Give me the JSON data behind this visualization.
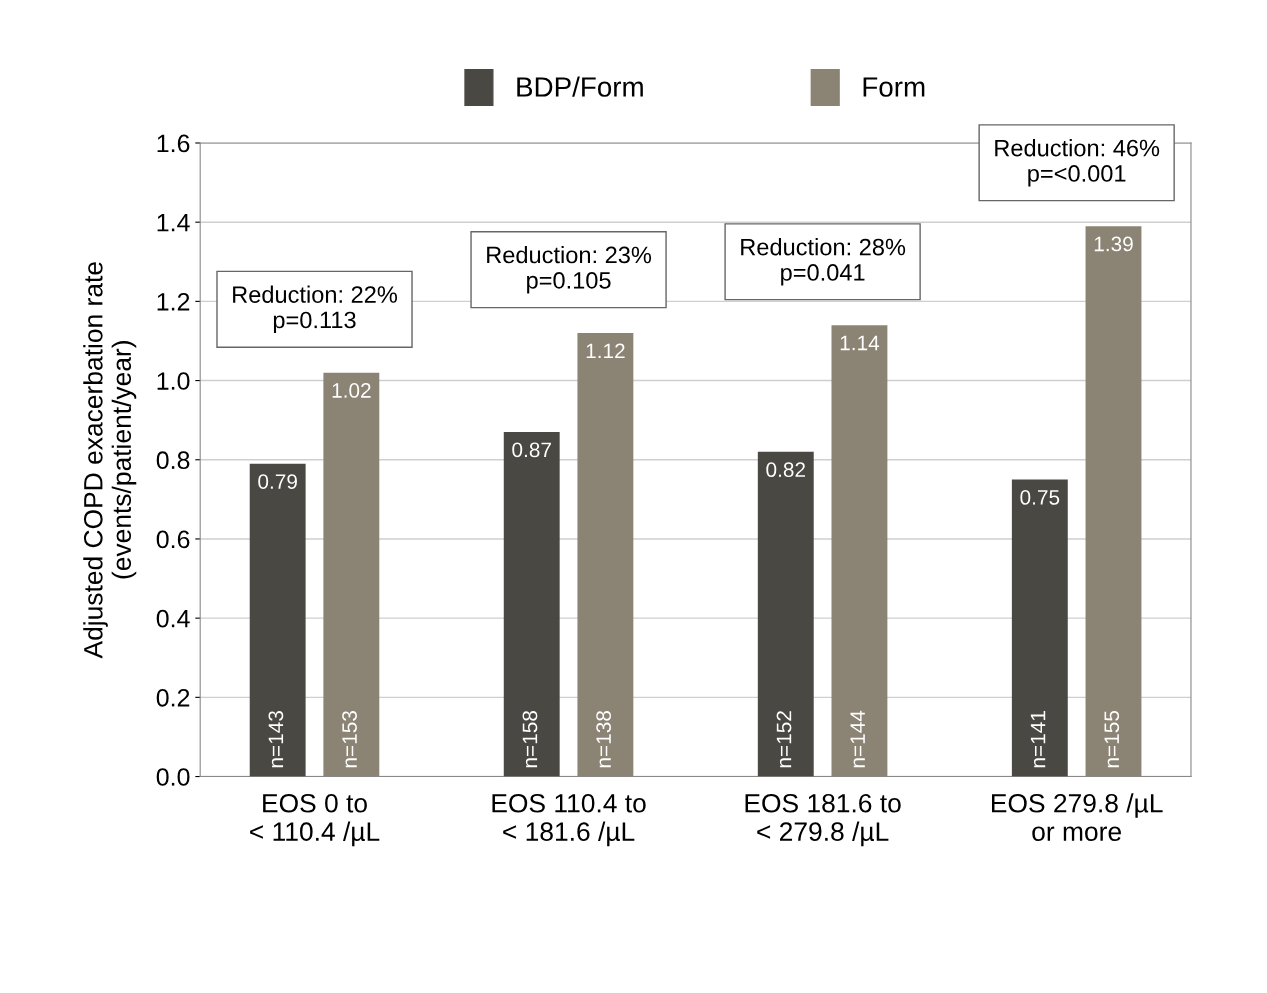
{
  "chart_data": {
    "type": "bar",
    "ylabel": "Adjusted COPD exacerbation rate\n(events/patient/year)",
    "categories": [
      "EOS 0 to\n< 110.4 /µL",
      "EOS 110.4 to\n< 181.6 /µL",
      "EOS 181.6 to\n< 279.8 /µL",
      "EOS 279.8 /µL\nor more"
    ],
    "series": [
      {
        "name": "BDP/Form",
        "color": "#4a4843",
        "values": [
          0.79,
          0.87,
          0.82,
          0.75
        ]
      },
      {
        "name": "Form",
        "color": "#8b8374",
        "values": [
          1.02,
          1.12,
          1.14,
          1.39
        ]
      }
    ],
    "data_labels": true,
    "ylim": [
      0,
      1.6
    ],
    "yticks": [
      "0.0",
      "0.2",
      "0.4",
      "0.6",
      "0.8",
      "1.0",
      "1.2",
      "1.4",
      "1.6"
    ],
    "grid": "y",
    "legend": "top",
    "annotations": [
      "Reduction: 22%\np=0.113",
      "Reduction: 23%\np=0.105",
      "Reduction: 28%\np=0.041",
      "Reduction: 46%\np=<0.001",
      "n=143",
      "n=153",
      "n=158",
      "n=138",
      "n=152",
      "n=144",
      "n=141",
      "n=155"
    ]
  }
}
